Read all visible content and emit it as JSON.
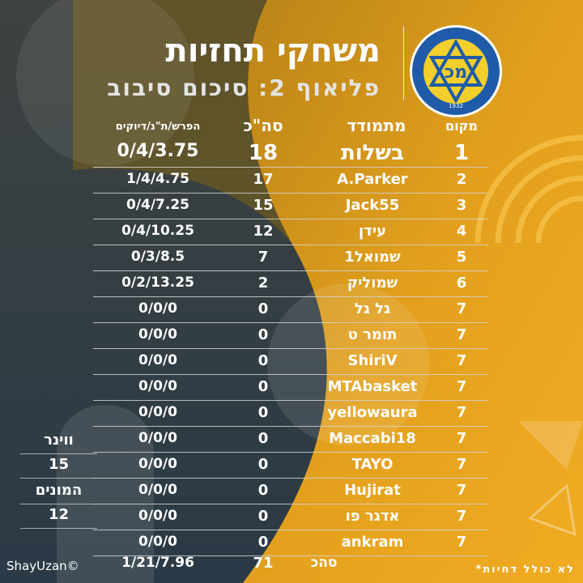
{
  "header": {
    "title": "משחקי תחזיות",
    "subtitle": "פליאוף 2: סיכום סיבוב"
  },
  "logo": {
    "ring_text": "מכבי תל-אביב",
    "ring_text_en": "MACCABI TEL-AVIV",
    "year": "1932",
    "colors": {
      "blue": "#1f5ba8",
      "yellow": "#f3cf2c"
    }
  },
  "table": {
    "headers": {
      "rank": "מקום",
      "player": "מתמודד",
      "total": "סה\"כ",
      "stats": "הפרש/ת\"נ/דיוקים"
    },
    "rows": [
      {
        "rank": "1",
        "player": "בשלות",
        "total": "18",
        "stats": "0/4/3.75"
      },
      {
        "rank": "2",
        "player": "A.Parker",
        "total": "17",
        "stats": "1/4/4.75"
      },
      {
        "rank": "3",
        "player": "Jack55",
        "total": "15",
        "stats": "0/4/7.25"
      },
      {
        "rank": "4",
        "player": "עידן",
        "total": "12",
        "stats": "0/4/10.25"
      },
      {
        "rank": "5",
        "player": "שמואל1",
        "total": "7",
        "stats": "0/3/8.5"
      },
      {
        "rank": "6",
        "player": "שמוליק",
        "total": "2",
        "stats": "0/2/13.25"
      },
      {
        "rank": "7",
        "player": "גל גל",
        "total": "0",
        "stats": "0/0/0"
      },
      {
        "rank": "7",
        "player": "תומר ט",
        "total": "0",
        "stats": "0/0/0"
      },
      {
        "rank": "7",
        "player": "ShiriV",
        "total": "0",
        "stats": "0/0/0"
      },
      {
        "rank": "7",
        "player": "MTAbasket",
        "total": "0",
        "stats": "0/0/0"
      },
      {
        "rank": "7",
        "player": "yellowaura",
        "total": "0",
        "stats": "0/0/0"
      },
      {
        "rank": "7",
        "player": "Maccabi18",
        "total": "0",
        "stats": "0/0/0"
      },
      {
        "rank": "7",
        "player": "TAYO",
        "total": "0",
        "stats": "0/0/0"
      },
      {
        "rank": "7",
        "player": "Hujirat",
        "total": "0",
        "stats": "0/0/0"
      },
      {
        "rank": "7",
        "player": "אדגר פו",
        "total": "0",
        "stats": "0/0/0"
      },
      {
        "rank": "7",
        "player": "ankram",
        "total": "0",
        "stats": "0/0/0"
      }
    ],
    "summary": {
      "label": "סהכ",
      "total": "71",
      "stats": "1/21/7.96"
    }
  },
  "side_panel": {
    "winner_label": "ווינר",
    "winner_value": "15",
    "monim_label": "המונים",
    "monim_value": "12"
  },
  "footer": {
    "credit": "ShayUzan©",
    "note": "*לא כולל דחיות"
  },
  "colors": {
    "dark_bg": "#3a3f40",
    "gold": "#e9a21a",
    "navy": "#2b3a48"
  }
}
